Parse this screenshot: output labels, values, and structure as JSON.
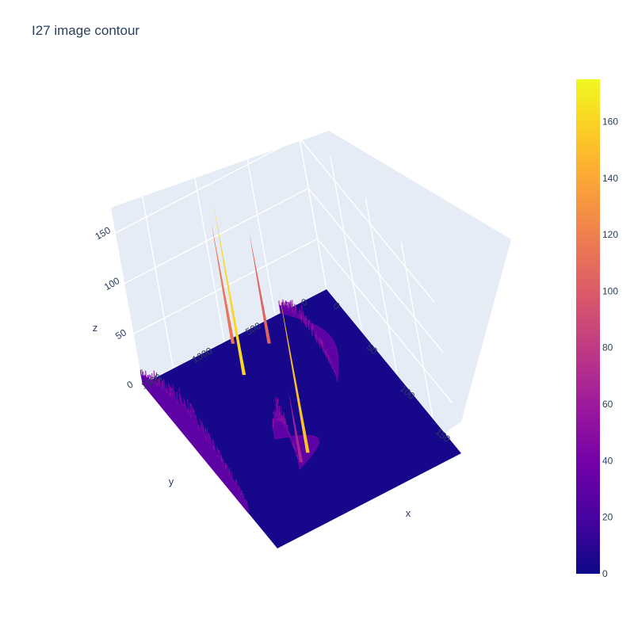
{
  "title": "I27 image contour",
  "chart_data": {
    "type": "surface",
    "title": "I27 image contour",
    "xlabel": "x",
    "ylabel": "y",
    "zlabel": "z",
    "x_ticks": [
      "0",
      "50",
      "100",
      "150"
    ],
    "y_ticks": [
      "0",
      "500",
      "1000",
      "1500"
    ],
    "z_ticks": [
      "0",
      "50",
      "100",
      "150"
    ],
    "xlim": [
      0,
      190
    ],
    "ylim": [
      0,
      1800
    ],
    "zlim": [
      0,
      175
    ],
    "colorbar": {
      "ticks": [
        "0",
        "20",
        "40",
        "60",
        "80",
        "100",
        "120",
        "140",
        "160"
      ],
      "range": [
        0,
        175
      ],
      "colorscale": [
        "#0d0887",
        "#46039f",
        "#7201a8",
        "#9c179e",
        "#bd3786",
        "#d8576b",
        "#ed7953",
        "#fb9f3a",
        "#fdca26",
        "#f0f921"
      ]
    },
    "peaks": [
      {
        "x": 35,
        "y": 1050,
        "z": 170
      },
      {
        "x": 5,
        "y": 950,
        "z": 120
      },
      {
        "x": 20,
        "y": 700,
        "z": 110
      },
      {
        "x": 125,
        "y": 1050,
        "z": 160
      },
      {
        "x": 130,
        "y": 1150,
        "z": 70
      }
    ]
  }
}
